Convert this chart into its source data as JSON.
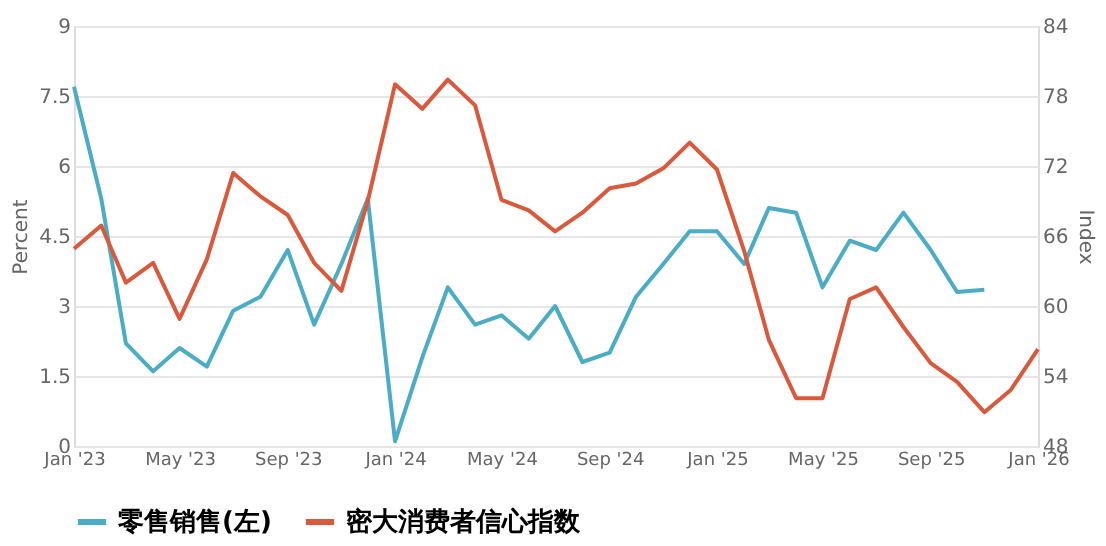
{
  "chart_data": {
    "type": "line",
    "ylabel": "Percent",
    "y2label": "Index",
    "x": [
      "2023-01",
      "2023-02",
      "2023-03",
      "2023-04",
      "2023-05",
      "2023-06",
      "2023-07",
      "2023-08",
      "2023-09",
      "2023-10",
      "2023-11",
      "2023-12",
      "2024-01",
      "2024-02",
      "2024-03",
      "2024-04",
      "2024-05",
      "2024-06",
      "2024-07",
      "2024-08",
      "2024-09",
      "2024-10",
      "2024-11",
      "2024-12",
      "2025-01",
      "2025-02",
      "2025-03",
      "2025-04",
      "2025-05",
      "2025-06",
      "2025-07",
      "2025-08",
      "2025-09",
      "2025-10",
      "2025-11",
      "2025-12",
      "2026-01"
    ],
    "series": [
      {
        "name": "零售销售(左)",
        "color": "#4bacc6",
        "values": [
          7.7,
          5.3,
          2.2,
          1.6,
          2.1,
          1.7,
          2.9,
          3.2,
          4.2,
          2.6,
          3.9,
          5.3,
          0.1,
          1.9,
          3.4,
          2.6,
          2.8,
          2.3,
          3.0,
          1.8,
          2.0,
          3.2,
          3.9,
          4.6,
          4.6,
          3.9,
          5.1,
          5.0,
          3.4,
          4.4,
          4.2,
          5.0,
          4.2,
          3.3,
          3.35,
          null,
          null
        ]
      },
      {
        "name": "密大消费者信心指数",
        "color": "#d9593d",
        "axis": "y2",
        "values": [
          64.9,
          66.9,
          62.0,
          63.7,
          58.9,
          64.0,
          71.4,
          69.4,
          67.8,
          63.7,
          61.3,
          69.0,
          79.0,
          76.9,
          79.4,
          77.2,
          69.1,
          68.2,
          66.4,
          68.0,
          70.1,
          70.5,
          71.8,
          74.0,
          71.7,
          64.7,
          57.1,
          52.1,
          52.1,
          60.6,
          61.6,
          58.2,
          55.1,
          53.5,
          50.9,
          52.8,
          56.3
        ]
      }
    ],
    "xlim": [
      "2023-01",
      "2026-01"
    ],
    "xticks": [
      {
        "value": "2023-01",
        "label": "Jan '23"
      },
      {
        "value": "2023-05",
        "label": "May '23"
      },
      {
        "value": "2023-09",
        "label": "Sep '23"
      },
      {
        "value": "2024-01",
        "label": "Jan '24"
      },
      {
        "value": "2024-05",
        "label": "May '24"
      },
      {
        "value": "2024-09",
        "label": "Sep '24"
      },
      {
        "value": "2025-01",
        "label": "Jan '25"
      },
      {
        "value": "2025-05",
        "label": "May '25"
      },
      {
        "value": "2025-09",
        "label": "Sep '25"
      },
      {
        "value": "2026-01",
        "label": "Jan '26"
      }
    ],
    "ylim": [
      0,
      9
    ],
    "yticks": [
      0,
      1.5,
      3,
      4.5,
      6,
      7.5,
      9
    ],
    "y2lim": [
      48,
      84
    ],
    "y2ticks": [
      48,
      54,
      60,
      66,
      72,
      78,
      84
    ],
    "grid": "y",
    "legend": "bottom",
    "marker": "none",
    "line_style": "solid"
  }
}
